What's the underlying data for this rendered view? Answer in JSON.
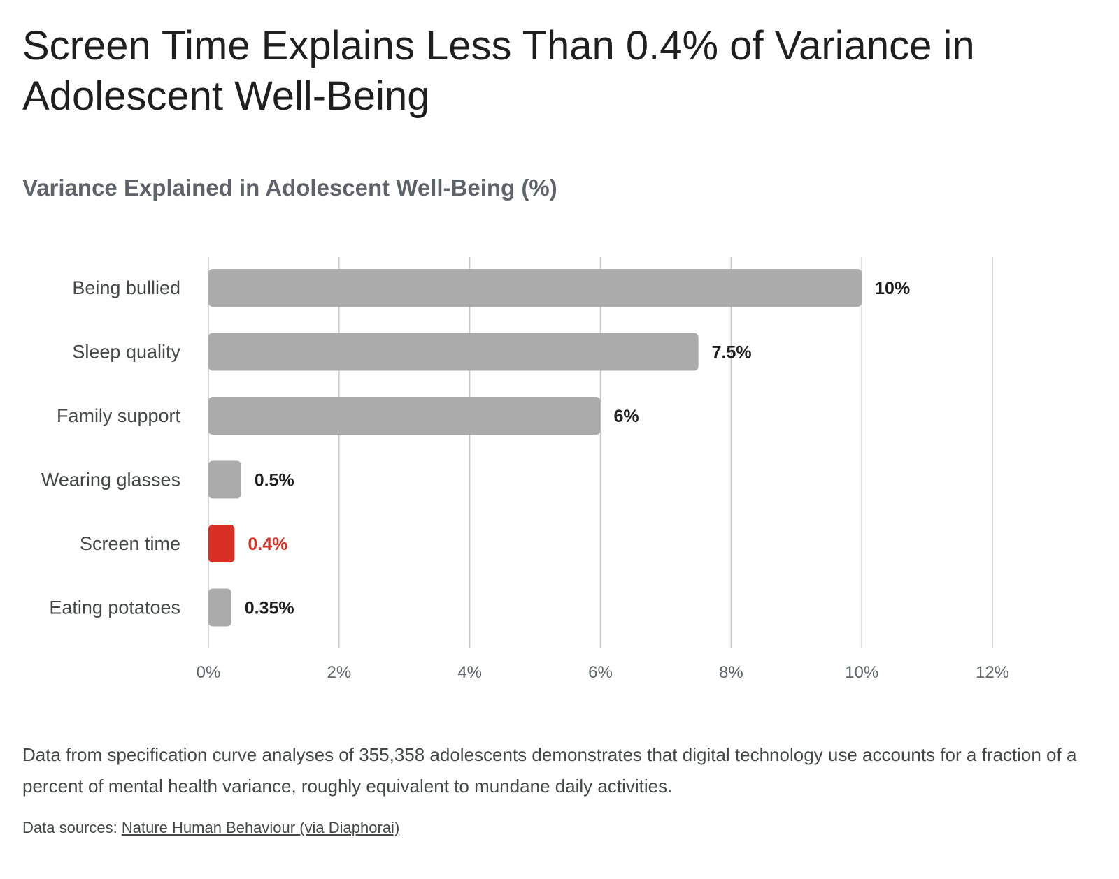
{
  "title": "Screen Time Explains Less Than 0.4% of Variance in Adolescent Well-Being",
  "subtitle": "Variance Explained in Adolescent Well-Being (%)",
  "description": "Data from specification curve analyses of 355,358 adolescents demonstrates that digital technology use accounts for a fraction of a percent of mental health variance, roughly equivalent to mundane daily activities.",
  "source": {
    "prefix": "Data sources:",
    "link_text": "Nature Human Behaviour (via Diaphorai)"
  },
  "colors": {
    "bar_default": "#ababab",
    "bar_highlight": "#d93025",
    "grid": "#c8c8c8",
    "value_label_default": "#1f1f1f",
    "value_label_highlight": "#d93025"
  },
  "chart_data": {
    "type": "bar",
    "orientation": "horizontal",
    "title": "Variance Explained in Adolescent Well-Being (%)",
    "xlabel": "",
    "ylabel": "",
    "categories": [
      "Being bullied",
      "Sleep quality",
      "Family support",
      "Wearing glasses",
      "Screen time",
      "Eating potatoes"
    ],
    "values": [
      10,
      7.5,
      6,
      0.5,
      0.4,
      0.35
    ],
    "value_labels": [
      "10%",
      "7.5%",
      "6%",
      "0.5%",
      "0.4%",
      "0.35%"
    ],
    "highlight": "Screen time",
    "xlim": [
      0,
      12
    ],
    "xticks": [
      0,
      2,
      4,
      6,
      8,
      10,
      12
    ],
    "xtick_labels": [
      "0%",
      "2%",
      "4%",
      "6%",
      "8%",
      "10%",
      "12%"
    ],
    "grid": "vertical",
    "legend": "none"
  }
}
